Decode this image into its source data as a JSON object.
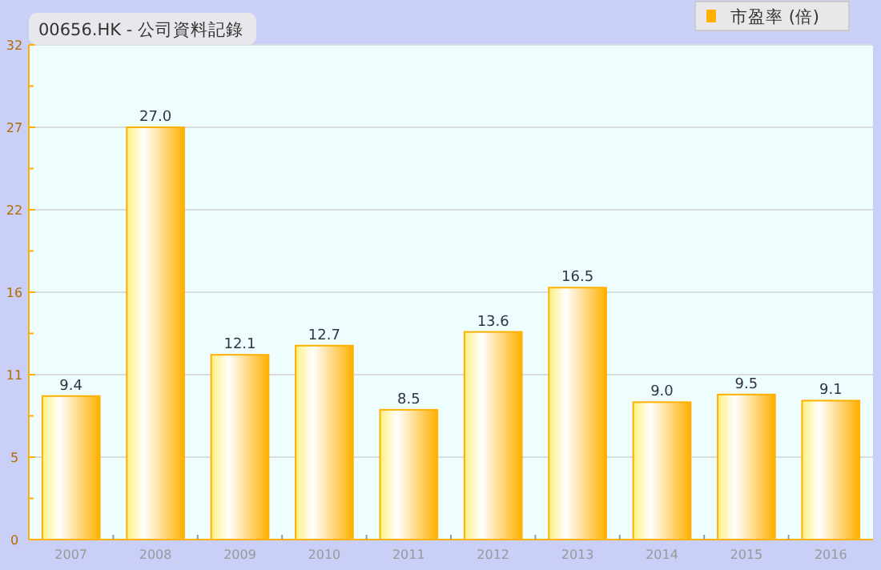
{
  "chart_data": {
    "type": "bar",
    "title": "00656.HK - 公司資料記錄",
    "categories": [
      "2007",
      "2008",
      "2009",
      "2010",
      "2011",
      "2012",
      "2013",
      "2014",
      "2015",
      "2016"
    ],
    "series": [
      {
        "name": "市盈率 (倍)",
        "color": "#ffb000",
        "values": [
          9.4,
          27.0,
          12.1,
          12.7,
          8.5,
          13.6,
          16.5,
          9.0,
          9.5,
          9.1
        ],
        "value_labels": [
          "9.4",
          "27.0",
          "12.1",
          "12.7",
          "8.5",
          "13.6",
          "16.5",
          "9.0",
          "9.5",
          "9.1"
        ]
      }
    ],
    "ylim": [
      0,
      32.4
    ],
    "yticks": [
      0,
      {
        "value": 2.7,
        "label": null
      },
      {
        "value": 5.4,
        "label": "5"
      },
      {
        "value": 8.1,
        "label": null
      },
      {
        "value": 10.8,
        "label": "11"
      },
      {
        "value": 13.5,
        "label": null
      },
      {
        "value": 16.2,
        "label": "16"
      },
      {
        "value": 18.9,
        "label": null
      },
      {
        "value": 21.6,
        "label": "22"
      },
      {
        "value": 24.3,
        "label": null
      },
      27,
      {
        "value": 29.7,
        "label": null
      },
      {
        "value": 32.4,
        "label": "32"
      }
    ],
    "grid": "y",
    "legend": "top right"
  }
}
